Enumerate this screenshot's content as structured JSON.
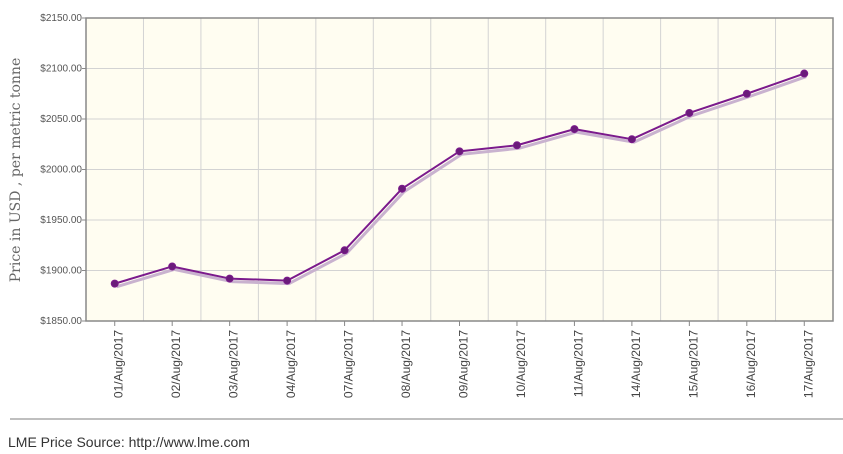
{
  "chart_data": {
    "type": "line",
    "ylabel": "Price in USD , per metric tonne",
    "ylim": [
      1850,
      2150
    ],
    "yticks": [
      1850,
      1900,
      1950,
      2000,
      2050,
      2100,
      2150
    ],
    "ytick_labels": [
      "$1850.00",
      "$1900.00",
      "$1950.00",
      "$2000.00",
      "$2050.00",
      "$2100.00",
      "$2150.00"
    ],
    "categories": [
      "01/Aug/2017",
      "02/Aug/2017",
      "03/Aug/2017",
      "04/Aug/2017",
      "07/Aug/2017",
      "08/Aug/2017",
      "09/Aug/2017",
      "10/Aug/2017",
      "11/Aug/2017",
      "14/Aug/2017",
      "15/Aug/2017",
      "16/Aug/2017",
      "17/Aug/2017"
    ],
    "series": [
      {
        "values": [
          1887,
          1904,
          1892,
          1890,
          1920,
          1981,
          2018,
          2024,
          2040,
          2030,
          2056,
          2075,
          2095
        ]
      }
    ],
    "grid": true,
    "colors": {
      "line": "#7b1a8c",
      "marker": "#6a1b7a",
      "shadow": "#c9b2cf",
      "plot_bg": "#fffdf1",
      "grid": "#d3d3d3",
      "border": "#888888"
    }
  },
  "footer": {
    "source": "LME Price Source: http://www.lme.com"
  }
}
